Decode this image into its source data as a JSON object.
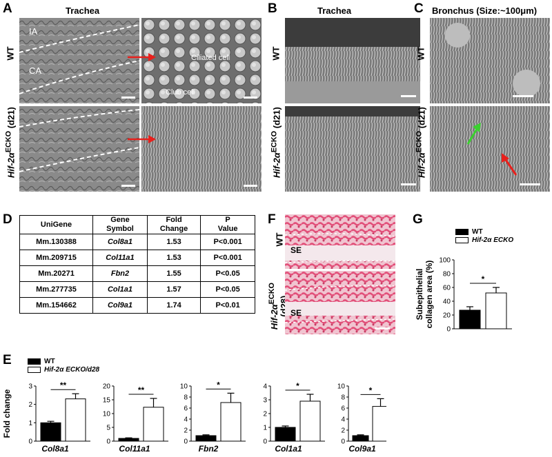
{
  "panels": {
    "A": {
      "label": "A",
      "title": "Trachea",
      "row_top": "WT",
      "ann_ia": "IA",
      "ann_ca": "CA",
      "ann_ciliated": "Ciliated cell",
      "ann_club": "Club cell"
    },
    "B": {
      "label": "B",
      "title": "Trachea"
    },
    "C": {
      "label": "C",
      "title": "Bronchus (Size:~100μm)"
    },
    "D": {
      "label": "D"
    },
    "E": {
      "label": "E"
    },
    "F": {
      "label": "F",
      "se_label": "SE"
    },
    "G": {
      "label": "G"
    }
  },
  "row_labels": {
    "wt": "WT",
    "ko_gene": "Hif-2α",
    "ko_sup": "ECKO",
    "ko_day21": "(d21)",
    "ko_day28": "(d28)"
  },
  "table": {
    "headers": [
      [
        "UniGene",
        ""
      ],
      [
        "Gene",
        "Symbol"
      ],
      [
        "Fold",
        "Change"
      ],
      [
        "P",
        "Value"
      ]
    ],
    "rows": [
      [
        "Mm.130388",
        "Col8a1",
        "1.53",
        "P<0.001"
      ],
      [
        "Mm.209715",
        "Col11a1",
        "1.53",
        "P<0.001"
      ],
      [
        "Mm.20271",
        "Fbn2",
        "1.55",
        "P<0.05"
      ],
      [
        "Mm.277735",
        "Col1a1",
        "1.57",
        "P<0.05"
      ],
      [
        "Mm.154662",
        "Col9a1",
        "1.74",
        "P<0.01"
      ]
    ]
  },
  "legend_g": {
    "wt": "WT",
    "ko": "Hif-2α ECKO"
  },
  "legend_e": {
    "wt": "WT",
    "ko": "Hif-2α ECKO/d28"
  },
  "colors": {
    "wt_bar": "#000000",
    "ko_bar": "#ffffff",
    "arrow_red": "#e8201c",
    "arrow_green": "#3ad12e",
    "stain_pink": "#e2507a"
  },
  "chart_data": [
    {
      "type": "bar",
      "panel": "G",
      "title": "",
      "ylabel": "Subepithelial collagen area (%)",
      "categories": [
        "WT",
        "Hif-2α ECKO"
      ],
      "values": [
        27,
        52
      ],
      "errors": [
        5,
        8
      ],
      "ylim": [
        0,
        100
      ],
      "yticks": [
        0,
        20,
        40,
        60,
        80,
        100
      ],
      "significance": "*"
    },
    {
      "type": "bar",
      "panel": "E",
      "xlabel": "Col8a1",
      "ylabel": "Fold change",
      "categories": [
        "WT",
        "Hif-2α ECKO/d28"
      ],
      "values": [
        1.0,
        2.3
      ],
      "errors": [
        0.08,
        0.28
      ],
      "ylim": [
        0,
        3
      ],
      "yticks": [
        0,
        1,
        2,
        3
      ],
      "significance": "**"
    },
    {
      "type": "bar",
      "panel": "E",
      "xlabel": "Col11a1",
      "ylabel": "",
      "categories": [
        "WT",
        "Hif-2α ECKO/d28"
      ],
      "values": [
        1.0,
        12.3
      ],
      "errors": [
        0.2,
        3.2
      ],
      "ylim": [
        0,
        20
      ],
      "yticks": [
        0,
        5,
        10,
        15,
        20
      ],
      "significance": "**"
    },
    {
      "type": "bar",
      "panel": "E",
      "xlabel": "Fbn2",
      "ylabel": "",
      "categories": [
        "WT",
        "Hif-2α ECKO/d28"
      ],
      "values": [
        1.0,
        7.0
      ],
      "errors": [
        0.15,
        1.7
      ],
      "ylim": [
        0,
        10
      ],
      "yticks": [
        0,
        2,
        4,
        6,
        8,
        10
      ],
      "significance": "*"
    },
    {
      "type": "bar",
      "panel": "E",
      "xlabel": "Col1a1",
      "ylabel": "",
      "categories": [
        "WT",
        "Hif-2α ECKO/d28"
      ],
      "values": [
        1.0,
        2.9
      ],
      "errors": [
        0.1,
        0.5
      ],
      "ylim": [
        0,
        4
      ],
      "yticks": [
        0,
        1,
        2,
        3,
        4
      ],
      "significance": "*"
    },
    {
      "type": "bar",
      "panel": "E",
      "xlabel": "Col9a1",
      "ylabel": "",
      "categories": [
        "WT",
        "Hif-2α ECKO/d28"
      ],
      "values": [
        1.0,
        6.3
      ],
      "errors": [
        0.15,
        1.4
      ],
      "ylim": [
        0,
        10
      ],
      "yticks": [
        0,
        2,
        4,
        6,
        8,
        10
      ],
      "significance": "*"
    }
  ]
}
